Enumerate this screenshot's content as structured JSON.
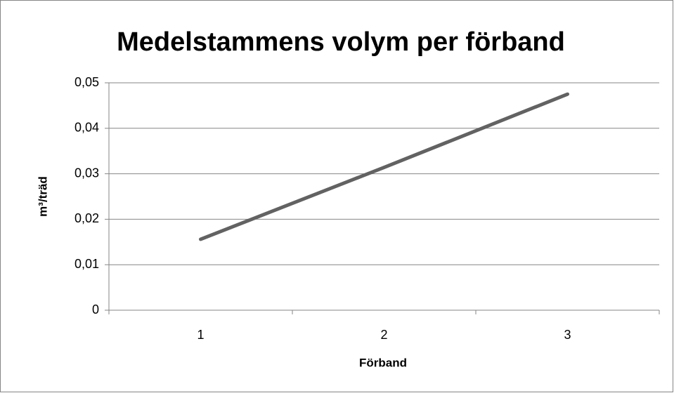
{
  "chart_data": {
    "type": "line",
    "title": "Medelstammens volym per förband",
    "x_label": "Förband",
    "y_label": "m³/träd",
    "categories": [
      "1",
      "2",
      "3"
    ],
    "series": [
      {
        "name": "Medelstammens volym",
        "color": "#626262",
        "values": [
          0.0156,
          0.0314,
          0.0475
        ]
      }
    ],
    "ylim": [
      0,
      0.05
    ],
    "yticks": [
      0,
      {
        "value": 0.01,
        "label": "0,01"
      },
      {
        "value": 0.02,
        "label": "0,02"
      },
      {
        "value": 0.03,
        "label": "0,03"
      },
      {
        "value": 0.04,
        "label": "0,04"
      },
      {
        "value": 0.05,
        "label": "0,05"
      }
    ],
    "grid": true,
    "legend": false
  }
}
